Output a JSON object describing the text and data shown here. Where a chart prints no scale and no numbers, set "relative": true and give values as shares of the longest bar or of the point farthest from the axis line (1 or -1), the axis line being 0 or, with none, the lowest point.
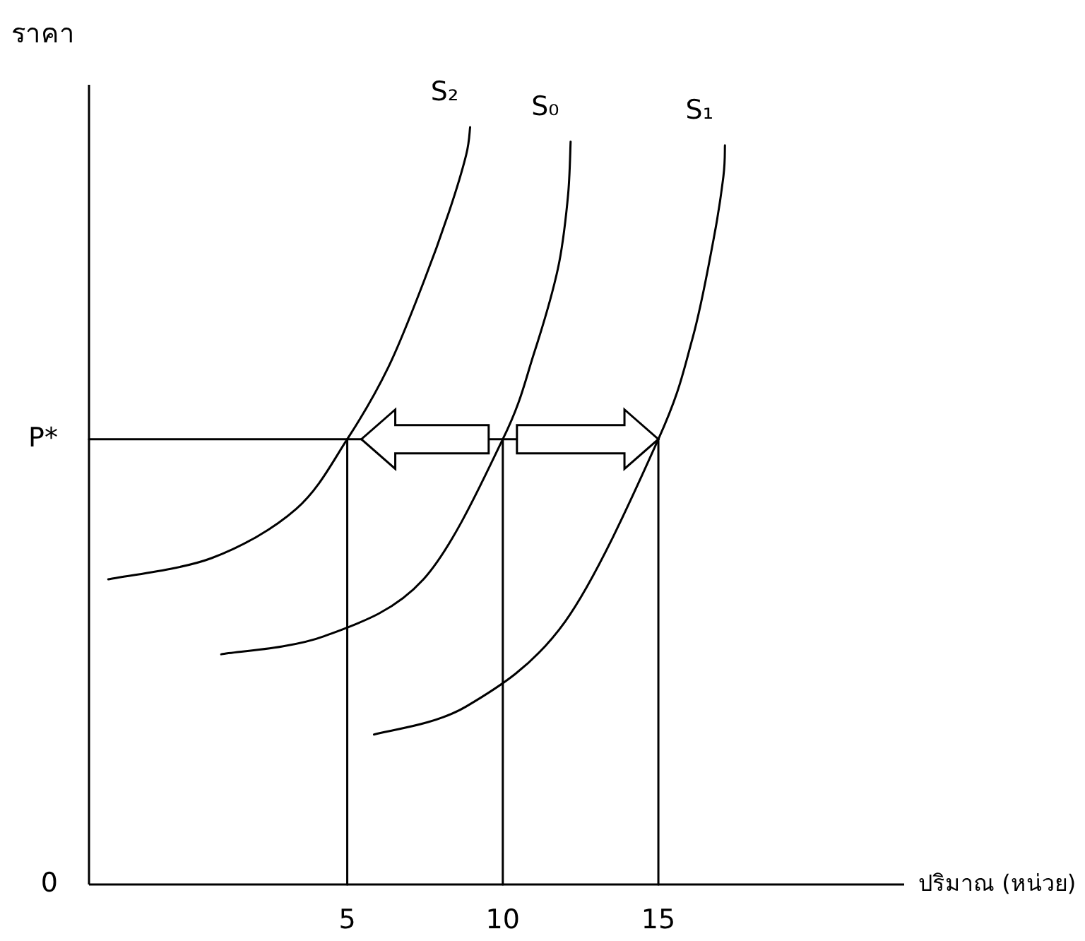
{
  "chart_data": {
    "type": "line",
    "xlabel": "ปริมาณ (หน่วย)",
    "ylabel": "ราคา",
    "relative": true,
    "xlim": [
      -3.3,
      22.9
    ],
    "xticks": [
      5,
      10,
      15
    ],
    "annotations": [
      "0",
      {
        "text": "P*",
        "x": -3.3,
        "y": 0.588
      }
    ],
    "series": [
      {
        "name": "S₂",
        "color": "#000000",
        "x": [
          -2.68,
          0.64,
          3.36,
          5,
          6.32,
          7.45,
          8.27,
          8.82,
          8.95
        ],
        "values": [
          0.403,
          0.431,
          0.496,
          0.588,
          0.683,
          0.795,
          0.888,
          0.963,
          1
        ]
      },
      {
        "name": "S₀",
        "color": "#000000",
        "x": [
          0.95,
          4.27,
          7.45,
          10,
          11.0,
          11.77,
          12.09,
          12.18
        ],
        "values": [
          0.304,
          0.328,
          0.403,
          0.588,
          0.701,
          0.813,
          0.907,
          0.981
        ]
      },
      {
        "name": "S₁",
        "color": "#000000",
        "x": [
          5.86,
          8.82,
          12.0,
          15,
          16.09,
          16.77,
          17.09,
          17.14
        ],
        "values": [
          0.198,
          0.235,
          0.347,
          0.588,
          0.72,
          0.851,
          0.935,
          0.976
        ]
      },
      {
        "color": "#000000",
        "x": [
          -3.3,
          15
        ],
        "values": [
          0.588,
          0.588
        ]
      },
      {
        "color": "#000000",
        "x": [
          5,
          5
        ],
        "values": [
          0,
          0.588
        ]
      },
      {
        "color": "#000000",
        "x": [
          10,
          10
        ],
        "values": [
          0,
          0.588
        ]
      },
      {
        "color": "#000000",
        "x": [
          15,
          15
        ],
        "values": [
          0,
          0.588
        ]
      }
    ]
  }
}
